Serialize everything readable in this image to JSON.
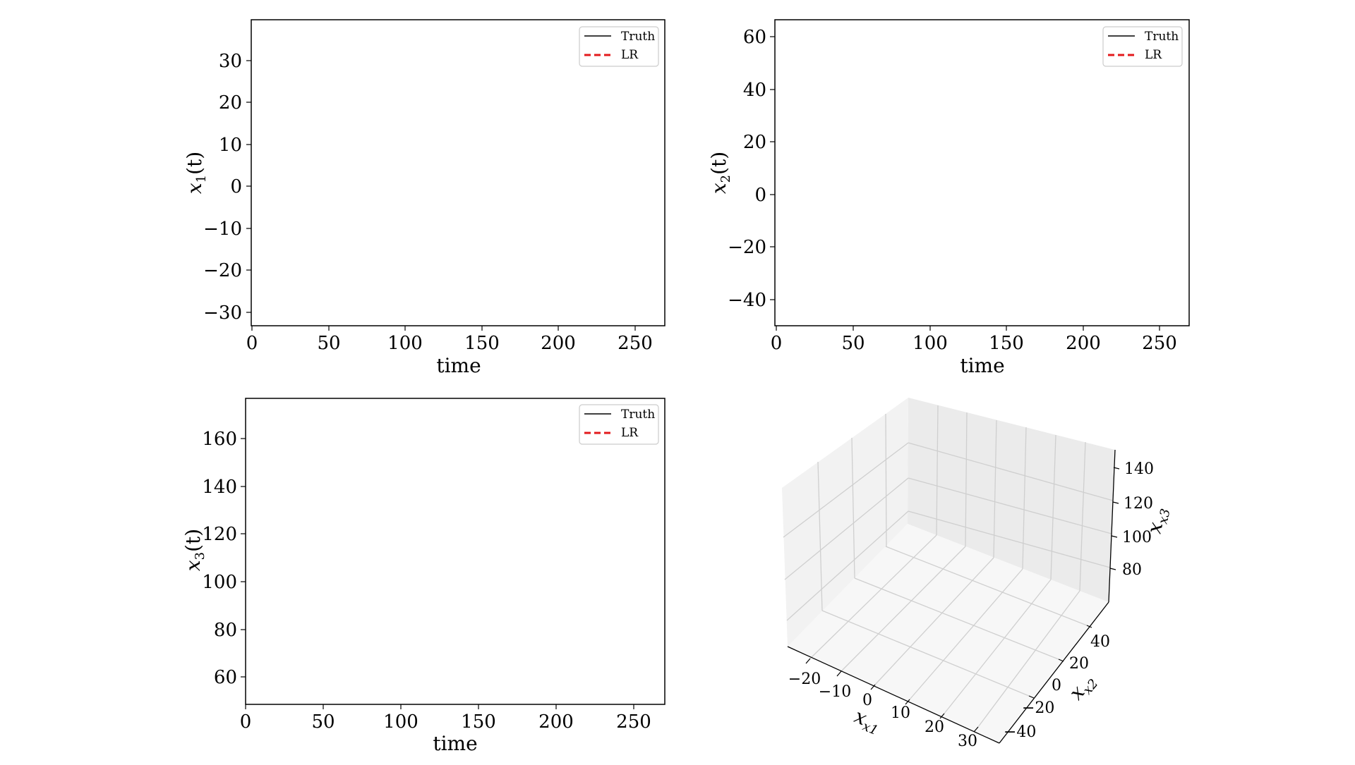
{
  "legend": {
    "items": [
      {
        "label": "Truth",
        "color": "#000000",
        "style": "solid"
      },
      {
        "label": "LR",
        "color": "#e31a1c",
        "style": "dashed"
      }
    ]
  },
  "chart_data": [
    {
      "type": "line",
      "xlabel": "time",
      "ylabel": "x1(t)",
      "ylabel_main": "x",
      "ylabel_sub": "1",
      "ylabel_tail": "(t)",
      "xlim": [
        0,
        270
      ],
      "ylim": [
        -33,
        40
      ],
      "xticks": [
        "0",
        "50",
        "100",
        "150",
        "200",
        "250"
      ],
      "xtick_values": [
        0,
        50,
        100,
        150,
        200,
        250
      ],
      "yticks": [
        "30",
        "20",
        "10",
        "0",
        "−10",
        "−20",
        "−30"
      ],
      "ytick_values": [
        30,
        20,
        10,
        0,
        -10,
        -20,
        -30
      ],
      "legend_position": "top-right",
      "series": [
        {
          "name": "Truth",
          "x": [],
          "y": []
        },
        {
          "name": "LR",
          "x": [],
          "y": []
        }
      ]
    },
    {
      "type": "line",
      "xlabel": "time",
      "ylabel": "x2(t)",
      "ylabel_main": "x",
      "ylabel_sub": "2",
      "ylabel_tail": "(t)",
      "xlim": [
        0,
        270
      ],
      "ylim": [
        -50,
        66
      ],
      "xticks": [
        "0",
        "50",
        "100",
        "150",
        "200",
        "250"
      ],
      "xtick_values": [
        0,
        50,
        100,
        150,
        200,
        250
      ],
      "yticks": [
        "60",
        "40",
        "20",
        "0",
        "−20",
        "−40"
      ],
      "ytick_values": [
        60,
        40,
        20,
        0,
        -20,
        -40
      ],
      "legend_position": "top-right",
      "series": [
        {
          "name": "Truth",
          "x": [],
          "y": []
        },
        {
          "name": "LR",
          "x": [],
          "y": []
        }
      ]
    },
    {
      "type": "line",
      "xlabel": "time",
      "ylabel": "x3(t)",
      "ylabel_main": "x",
      "ylabel_sub": "3",
      "ylabel_tail": "(t)",
      "xlim": [
        0,
        270
      ],
      "ylim": [
        48,
        176
      ],
      "xticks": [
        "0",
        "50",
        "100",
        "150",
        "200",
        "250"
      ],
      "xtick_values": [
        0,
        50,
        100,
        150,
        200,
        250
      ],
      "yticks": [
        "160",
        "140",
        "120",
        "100",
        "80",
        "60"
      ],
      "ytick_values": [
        160,
        140,
        120,
        100,
        80,
        60
      ],
      "legend_position": "top-right",
      "series": [
        {
          "name": "Truth",
          "x": [],
          "y": []
        },
        {
          "name": "LR",
          "x": [],
          "y": []
        }
      ]
    },
    {
      "type": "line3d",
      "xlabel": "x1",
      "ylabel": "x2",
      "zlabel": "x3",
      "x1_ticks": [
        "−20",
        "−10",
        "0",
        "10",
        "20",
        "30"
      ],
      "x2_ticks": [
        "40",
        "20",
        "0",
        "−20",
        "−40"
      ],
      "x3_ticks": [
        "140",
        "120",
        "100",
        "80"
      ],
      "series": [
        {
          "name": "Truth",
          "points": []
        },
        {
          "name": "LR",
          "points": []
        }
      ]
    }
  ]
}
